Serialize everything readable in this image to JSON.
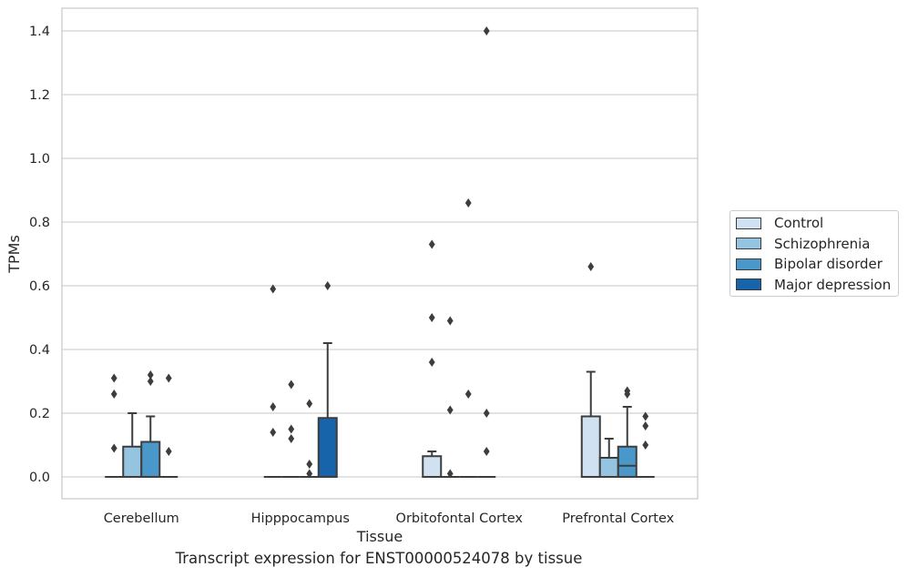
{
  "chart_data": {
    "type": "box",
    "title": "",
    "caption": "Transcript expression for ENST00000524078 by tissue",
    "xlabel": "Tissue",
    "ylabel": "TPMs",
    "ylim": [
      -0.068,
      1.47
    ],
    "yticks": [
      "0.0",
      "0.2",
      "0.4",
      "0.6",
      "0.8",
      "1.0",
      "1.2",
      "1.4"
    ],
    "grid": true,
    "legend_position": "right",
    "categories": [
      "Cerebellum",
      "Hipppocampus",
      "Orbitofontal Cortex",
      "Prefrontal Cortex"
    ],
    "series": [
      {
        "name": "Control",
        "color": "#d0e1f2",
        "boxes": [
          {
            "q1": 0,
            "median": 0,
            "q3": 0,
            "whisker_low": 0,
            "whisker_high": 0,
            "outliers": [
              0.31,
              0.26,
              0.09
            ]
          },
          {
            "q1": 0,
            "median": 0,
            "q3": 0,
            "whisker_low": 0,
            "whisker_high": 0,
            "outliers": [
              0.59,
              0.22,
              0.14
            ]
          },
          {
            "q1": 0,
            "median": 0,
            "q3": 0.065,
            "whisker_low": 0,
            "whisker_high": 0.08,
            "outliers": [
              0.73,
              0.5,
              0.36
            ]
          },
          {
            "q1": 0,
            "median": 0,
            "q3": 0.19,
            "whisker_low": 0,
            "whisker_high": 0.33,
            "outliers": [
              0.66
            ]
          }
        ]
      },
      {
        "name": "Schizophrenia",
        "color": "#94c4df",
        "boxes": [
          {
            "q1": 0,
            "median": 0,
            "q3": 0.095,
            "whisker_low": 0,
            "whisker_high": 0.2,
            "outliers": []
          },
          {
            "q1": 0,
            "median": 0,
            "q3": 0,
            "whisker_low": 0,
            "whisker_high": 0,
            "outliers": [
              0.29,
              0.15,
              0.12
            ]
          },
          {
            "q1": 0,
            "median": 0,
            "q3": 0,
            "whisker_low": 0,
            "whisker_high": 0,
            "outliers": [
              0.49,
              0.21,
              0.01
            ]
          },
          {
            "q1": 0,
            "median": 0,
            "q3": 0.06,
            "whisker_low": 0,
            "whisker_high": 0.12,
            "outliers": []
          }
        ]
      },
      {
        "name": "Bipolar disorder",
        "color": "#4a98c9",
        "boxes": [
          {
            "q1": 0,
            "median": 0,
            "q3": 0.11,
            "whisker_low": 0,
            "whisker_high": 0.19,
            "outliers": [
              0.32,
              0.3
            ]
          },
          {
            "q1": 0,
            "median": 0,
            "q3": 0,
            "whisker_low": 0,
            "whisker_high": 0,
            "outliers": [
              0.23,
              0.04,
              0.01
            ]
          },
          {
            "q1": 0,
            "median": 0,
            "q3": 0,
            "whisker_low": 0,
            "whisker_high": 0,
            "outliers": [
              0.86,
              0.26
            ]
          },
          {
            "q1": 0,
            "median": 0.035,
            "q3": 0.095,
            "whisker_low": 0,
            "whisker_high": 0.22,
            "outliers": [
              0.27,
              0.26
            ]
          }
        ]
      },
      {
        "name": "Major depression",
        "color": "#1764ab",
        "boxes": [
          {
            "q1": 0,
            "median": 0,
            "q3": 0,
            "whisker_low": 0,
            "whisker_high": 0,
            "outliers": [
              0.31,
              0.08
            ]
          },
          {
            "q1": 0,
            "median": 0,
            "q3": 0.185,
            "whisker_low": 0,
            "whisker_high": 0.42,
            "outliers": [
              0.6
            ]
          },
          {
            "q1": 0,
            "median": 0,
            "q3": 0,
            "whisker_low": 0,
            "whisker_high": 0,
            "outliers": [
              1.4,
              0.2,
              0.08
            ]
          },
          {
            "q1": 0,
            "median": 0,
            "q3": 0,
            "whisker_low": 0,
            "whisker_high": 0,
            "outliers": [
              0.19,
              0.16,
              0.1
            ]
          }
        ]
      }
    ]
  }
}
